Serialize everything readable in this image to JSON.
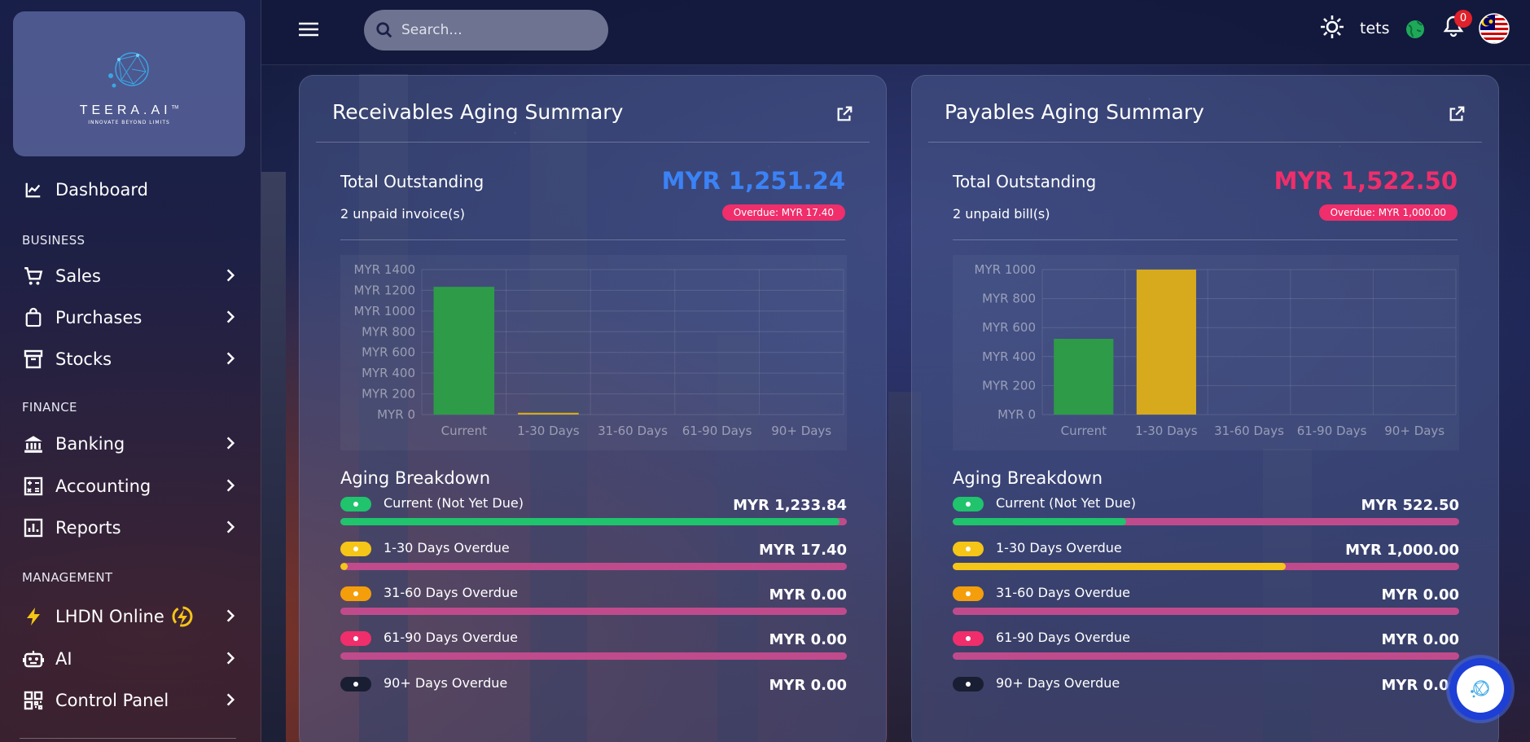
{
  "app": {
    "logo_text": "TEERA.AI",
    "logo_tm": "TM",
    "logo_tagline": "INNOVATE BEYOND LIMITS"
  },
  "sidebar": {
    "dashboard": "Dashboard",
    "sections": {
      "business": "BUSINESS",
      "finance": "FINANCE",
      "management": "MANAGEMENT"
    },
    "items": {
      "sales": "Sales",
      "purchases": "Purchases",
      "stocks": "Stocks",
      "banking": "Banking",
      "accounting": "Accounting",
      "reports": "Reports",
      "lhdn": "LHDN Online",
      "ai": "AI",
      "control_panel": "Control Panel"
    }
  },
  "topbar": {
    "search_placeholder": "Search...",
    "username": "tets",
    "notification_count": "0"
  },
  "receivables": {
    "title": "Receivables Aging Summary",
    "total_label": "Total Outstanding",
    "total_amount": "MYR 1,251.24",
    "sub": "2 unpaid invoice(s)",
    "overdue": "Overdue: MYR 17.40",
    "breakdown_title": "Aging Breakdown",
    "rows": [
      {
        "label": "Current (Not Yet Due)",
        "amount": "MYR 1,233.84",
        "fraction": 0.986
      },
      {
        "label": "1-30 Days Overdue",
        "amount": "MYR 17.40",
        "fraction": 0.014
      },
      {
        "label": "31-60 Days Overdue",
        "amount": "MYR 0.00",
        "fraction": 0
      },
      {
        "label": "61-90 Days Overdue",
        "amount": "MYR 0.00",
        "fraction": 0
      },
      {
        "label": "90+ Days Overdue",
        "amount": "MYR 0.00",
        "fraction": 0
      }
    ]
  },
  "payables": {
    "title": "Payables Aging Summary",
    "total_label": "Total Outstanding",
    "total_amount": "MYR 1,522.50",
    "sub": "2 unpaid bill(s)",
    "overdue": "Overdue: MYR 1,000.00",
    "breakdown_title": "Aging Breakdown",
    "rows": [
      {
        "label": "Current (Not Yet Due)",
        "amount": "MYR 522.50",
        "fraction": 0.343
      },
      {
        "label": "1-30 Days Overdue",
        "amount": "MYR 1,000.00",
        "fraction": 0.657
      },
      {
        "label": "31-60 Days Overdue",
        "amount": "MYR 0.00",
        "fraction": 0
      },
      {
        "label": "61-90 Days Overdue",
        "amount": "MYR 0.00",
        "fraction": 0
      },
      {
        "label": "90+ Days Overdue",
        "amount": "MYR 0.00",
        "fraction": 0
      }
    ]
  },
  "colors": {
    "current": "#1fc46d",
    "d1_30": "#f5c518",
    "d31_60": "#f59e0b",
    "d61_90": "#ef2e6b",
    "d90": "#1a1e33",
    "receivable_total": "#3b82f6",
    "payable_total": "#ef2e6b",
    "bar_track": "#c04b8c",
    "chart_green": "#2e9b48",
    "chart_yellow": "#d6aa1c"
  },
  "chart_data": [
    {
      "type": "bar",
      "categories": [
        "Current",
        "1-30 Days",
        "31-60 Days",
        "61-90 Days",
        "90+ Days"
      ],
      "values": [
        1233.84,
        17.4,
        0,
        0,
        0
      ],
      "ylim": [
        0,
        1400
      ],
      "yticks": [
        0,
        200,
        400,
        600,
        800,
        1000,
        1200,
        1400
      ],
      "ytick_labels": [
        "MYR 0",
        "MYR 200",
        "MYR 400",
        "MYR 600",
        "MYR 800",
        "MYR 1000",
        "MYR 1200",
        "MYR 1400"
      ],
      "bar_colors": [
        "#2e9b48",
        "#d6aa1c",
        "#f59e0b",
        "#ef2e6b",
        "#1a1e33"
      ],
      "grid": true
    },
    {
      "type": "bar",
      "categories": [
        "Current",
        "1-30 Days",
        "31-60 Days",
        "61-90 Days",
        "90+ Days"
      ],
      "values": [
        522.5,
        1000.0,
        0,
        0,
        0
      ],
      "ylim": [
        0,
        1000
      ],
      "yticks": [
        0,
        200,
        400,
        600,
        800,
        1000
      ],
      "ytick_labels": [
        "MYR 0",
        "MYR 200",
        "MYR 400",
        "MYR 600",
        "MYR 800",
        "MYR 1000"
      ],
      "bar_colors": [
        "#2e9b48",
        "#d6aa1c",
        "#f59e0b",
        "#ef2e6b",
        "#1a1e33"
      ],
      "grid": true
    }
  ]
}
